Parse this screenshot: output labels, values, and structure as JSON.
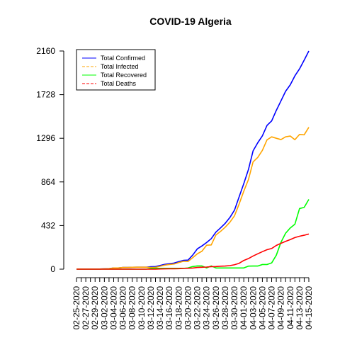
{
  "chart_data": {
    "type": "line",
    "title": "COVID-19 Algeria",
    "xlabel": "",
    "ylabel": "",
    "ylim": [
      0,
      2160
    ],
    "yticks": [
      0,
      432,
      864,
      1296,
      1728,
      2160
    ],
    "grid": false,
    "legend_position": "top-left",
    "x": [
      "02-25-2020",
      "02-26-2020",
      "02-27-2020",
      "02-28-2020",
      "02-29-2020",
      "03-01-2020",
      "03-02-2020",
      "03-03-2020",
      "03-04-2020",
      "03-05-2020",
      "03-06-2020",
      "03-07-2020",
      "03-08-2020",
      "03-09-2020",
      "03-10-2020",
      "03-11-2020",
      "03-12-2020",
      "03-13-2020",
      "03-14-2020",
      "03-15-2020",
      "03-16-2020",
      "03-17-2020",
      "03-18-2020",
      "03-19-2020",
      "03-20-2020",
      "03-21-2020",
      "03-22-2020",
      "03-23-2020",
      "03-24-2020",
      "03-25-2020",
      "03-26-2020",
      "03-27-2020",
      "03-28-2020",
      "03-29-2020",
      "03-30-2020",
      "03-31-2020",
      "04-01-2020",
      "04-02-2020",
      "04-03-2020",
      "04-04-2020",
      "04-05-2020",
      "04-06-2020",
      "04-07-2020",
      "04-08-2020",
      "04-09-2020",
      "04-10-2020",
      "04-11-2020",
      "04-12-2020",
      "04-13-2020",
      "04-14-2020",
      "04-15-2020"
    ],
    "xtick_labels": [
      "02-25-2020",
      "02-27-2020",
      "02-29-2020",
      "03-02-2020",
      "03-04-2020",
      "03-06-2020",
      "03-08-2020",
      "03-10-2020",
      "03-12-2020",
      "03-14-2020",
      "03-16-2020",
      "03-18-2020",
      "03-20-2020",
      "03-22-2020",
      "03-24-2020",
      "03-26-2020",
      "03-28-2020",
      "03-30-2020",
      "04-01-2020",
      "04-03-2020",
      "04-05-2020",
      "04-07-2020",
      "04-09-2020",
      "04-11-2020",
      "04-13-2020",
      "04-15-2020"
    ],
    "series": [
      {
        "name": "Total Confirmed",
        "color": "#0000ff",
        "dashed": false,
        "values": [
          1,
          1,
          1,
          1,
          1,
          1,
          3,
          5,
          12,
          12,
          17,
          17,
          19,
          20,
          20,
          20,
          24,
          26,
          37,
          48,
          54,
          60,
          74,
          87,
          90,
          139,
          201,
          230,
          264,
          302,
          367,
          409,
          454,
          511,
          584,
          716,
          847,
          986,
          1171,
          1251,
          1320,
          1423,
          1468,
          1572,
          1666,
          1761,
          1825,
          1914,
          1983,
          2070,
          2160
        ]
      },
      {
        "name": "Total Infected",
        "color": "#ffa500",
        "dashed": true,
        "values": [
          1,
          1,
          1,
          1,
          1,
          1,
          3,
          5,
          12,
          12,
          17,
          17,
          19,
          20,
          20,
          20,
          16,
          18,
          29,
          40,
          46,
          51,
          65,
          78,
          76,
          113,
          152,
          178,
          237,
          240,
          338,
          374,
          415,
          464,
          528,
          645,
          772,
          887,
          1062,
          1106,
          1176,
          1280,
          1310,
          1296,
          1283,
          1310,
          1318,
          1282,
          1334,
          1330,
          1405
        ]
      },
      {
        "name": "Total Recovered",
        "color": "#00ff00",
        "dashed": false,
        "values": [
          0,
          0,
          0,
          0,
          0,
          0,
          0,
          0,
          0,
          0,
          0,
          0,
          0,
          0,
          0,
          0,
          8,
          8,
          8,
          8,
          8,
          8,
          8,
          8,
          12,
          26,
          32,
          32,
          12,
          32,
          12,
          12,
          12,
          12,
          12,
          12,
          12,
          30,
          31,
          31,
          46,
          46,
          62,
          138,
          266,
          356,
          408,
          445,
          600,
          612,
          691
        ]
      },
      {
        "name": "Total Deaths",
        "color": "#ff0000",
        "dashed": true,
        "values": [
          0,
          0,
          0,
          0,
          0,
          0,
          0,
          0,
          0,
          0,
          0,
          0,
          0,
          0,
          0,
          0,
          0,
          0,
          2,
          3,
          4,
          4,
          5,
          7,
          9,
          11,
          17,
          19,
          21,
          25,
          26,
          29,
          31,
          35,
          44,
          58,
          86,
          105,
          130,
          152,
          173,
          193,
          205,
          235,
          256,
          275,
          293,
          313,
          326,
          336,
          348
        ]
      }
    ]
  }
}
